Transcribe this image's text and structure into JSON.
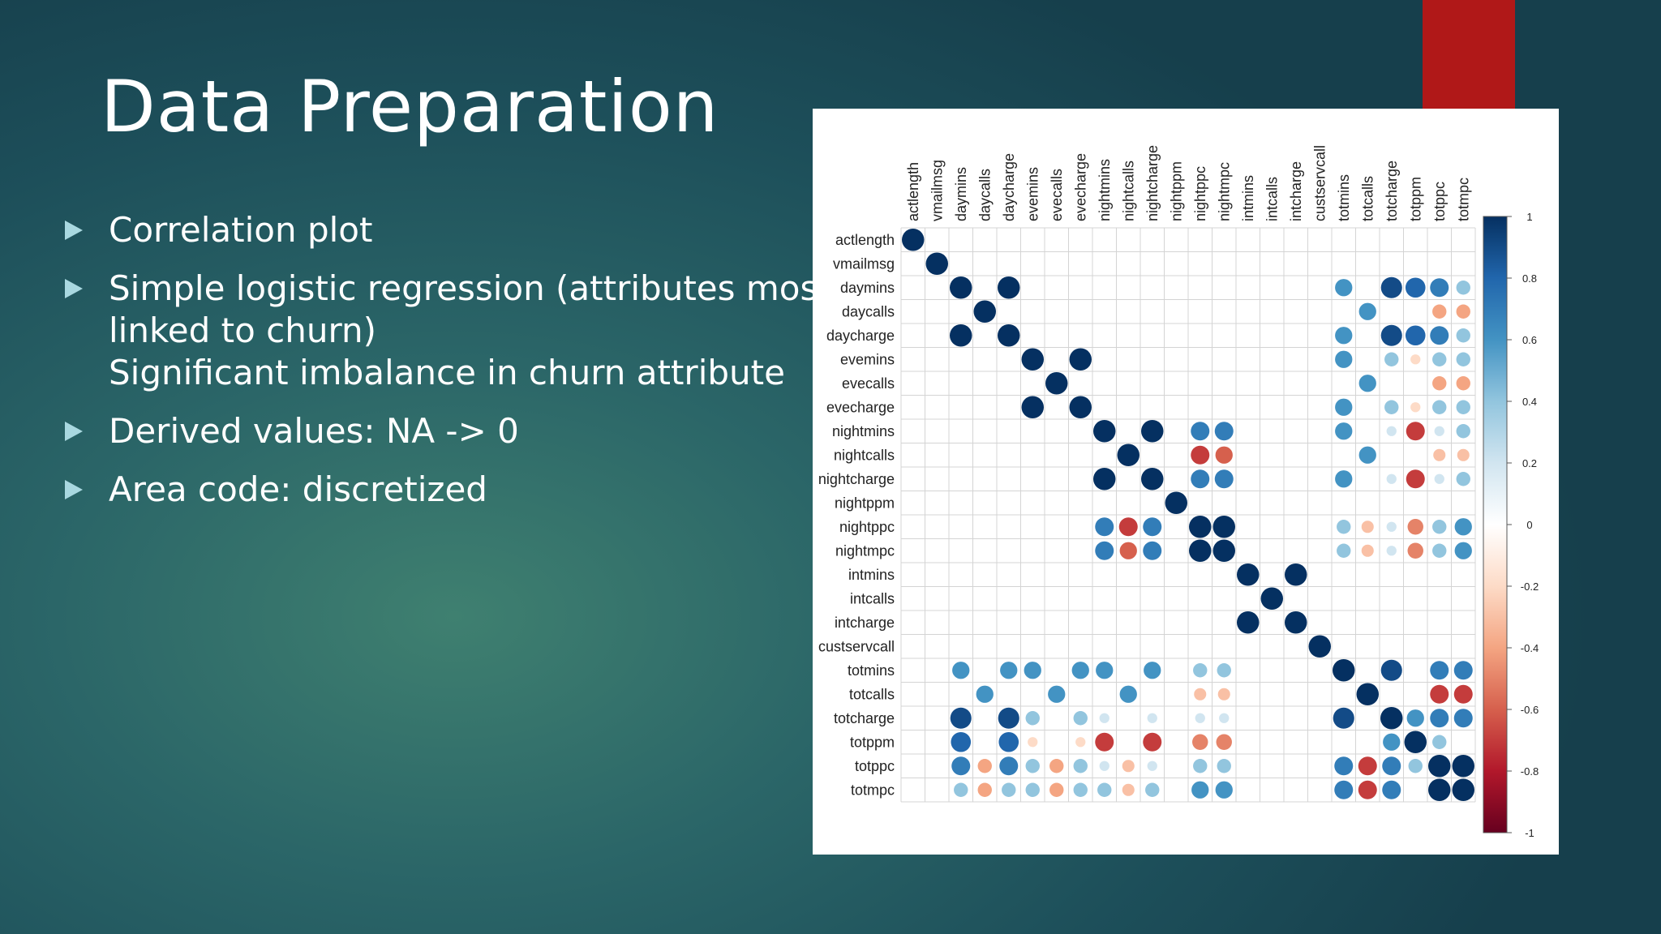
{
  "slide": {
    "title": "Data Preparation",
    "bullets": [
      {
        "lines": [
          "Correlation plot"
        ]
      },
      {
        "lines": [
          "Simple logistic regression (attributes most",
          "linked to churn)",
          "Significant imbalance in churn attribute"
        ]
      },
      {
        "lines": [
          "Derived values: NA -> 0"
        ]
      },
      {
        "lines": [
          "Area code: discretized"
        ]
      }
    ]
  },
  "colors": {
    "accent": "#b01818",
    "positive_strong": "#053061",
    "negative_strong": "#67001f",
    "neutral": "#ffffff"
  },
  "chart_data": {
    "type": "heatmap",
    "variables": [
      "actlength",
      "vmailmsg",
      "daymins",
      "daycalls",
      "daycharge",
      "evemins",
      "evecalls",
      "evecharge",
      "nightmins",
      "nightcalls",
      "nightcharge",
      "nightppm",
      "nightppc",
      "nightmpc",
      "intmins",
      "intcalls",
      "intcharge",
      "custservcall",
      "totmins",
      "totcalls",
      "totcharge",
      "totppm",
      "totppc",
      "totmpc"
    ],
    "legend_ticks": [
      "1",
      "0.8",
      "0.6",
      "0.4",
      "0.2",
      "0",
      "-0.2",
      "-0.4",
      "-0.6",
      "-0.8",
      "-1"
    ],
    "range": [
      -1,
      1
    ],
    "matrix": [
      [
        1,
        0,
        0,
        0,
        0,
        0,
        0,
        0,
        0,
        0,
        0,
        0,
        0,
        0,
        0,
        0,
        0,
        0,
        0,
        0,
        0,
        0,
        0,
        0
      ],
      [
        0,
        1,
        0,
        0,
        0,
        0,
        0,
        0,
        0,
        0,
        0,
        0,
        0,
        0,
        0,
        0,
        0,
        0,
        0,
        0,
        0,
        0,
        0,
        0
      ],
      [
        0,
        0,
        1,
        0,
        1,
        0,
        0,
        0,
        0,
        0,
        0,
        0,
        0,
        0,
        0,
        0,
        0,
        0,
        0.6,
        0,
        0.9,
        0.8,
        0.7,
        0.4
      ],
      [
        0,
        0,
        0,
        1,
        0,
        0,
        0,
        0,
        0,
        0,
        0,
        0,
        0,
        0,
        0,
        0,
        0,
        0,
        0,
        0.6,
        0,
        0,
        -0.4,
        -0.4
      ],
      [
        0,
        0,
        1,
        0,
        1,
        0,
        0,
        0,
        0,
        0,
        0,
        0,
        0,
        0,
        0,
        0,
        0,
        0,
        0.6,
        0,
        0.9,
        0.8,
        0.7,
        0.4
      ],
      [
        0,
        0,
        0,
        0,
        0,
        1,
        0,
        1,
        0,
        0,
        0,
        0,
        0,
        0,
        0,
        0,
        0,
        0,
        0.6,
        0,
        0.4,
        -0.2,
        0.4,
        0.4
      ],
      [
        0,
        0,
        0,
        0,
        0,
        0,
        1,
        0,
        0,
        0,
        0,
        0,
        0,
        0,
        0,
        0,
        0,
        0,
        0,
        0.6,
        0,
        0,
        -0.4,
        -0.4
      ],
      [
        0,
        0,
        0,
        0,
        0,
        1,
        0,
        1,
        0,
        0,
        0,
        0,
        0,
        0,
        0,
        0,
        0,
        0,
        0.6,
        0,
        0.4,
        -0.2,
        0.4,
        0.4
      ],
      [
        0,
        0,
        0,
        0,
        0,
        0,
        0,
        0,
        1,
        0,
        1,
        0,
        0.7,
        0.7,
        0,
        0,
        0,
        0,
        0.6,
        0,
        0.2,
        -0.7,
        0.2,
        0.4
      ],
      [
        0,
        0,
        0,
        0,
        0,
        0,
        0,
        0,
        0,
        1,
        0,
        0,
        -0.7,
        -0.6,
        0,
        0,
        0,
        0,
        0,
        0.6,
        0,
        0,
        -0.3,
        -0.3
      ],
      [
        0,
        0,
        0,
        0,
        0,
        0,
        0,
        0,
        1,
        0,
        1,
        0,
        0.7,
        0.7,
        0,
        0,
        0,
        0,
        0.6,
        0,
        0.2,
        -0.7,
        0.2,
        0.4
      ],
      [
        0,
        0,
        0,
        0,
        0,
        0,
        0,
        0,
        0,
        0,
        0,
        1,
        0,
        0,
        0,
        0,
        0,
        0,
        0,
        0,
        0,
        0,
        0,
        0
      ],
      [
        0,
        0,
        0,
        0,
        0,
        0,
        0,
        0,
        0.7,
        -0.7,
        0.7,
        0,
        1,
        1,
        0,
        0,
        0,
        0,
        0.4,
        -0.3,
        0.2,
        -0.5,
        0.4,
        0.6
      ],
      [
        0,
        0,
        0,
        0,
        0,
        0,
        0,
        0,
        0.7,
        -0.6,
        0.7,
        0,
        1,
        1,
        0,
        0,
        0,
        0,
        0.4,
        -0.3,
        0.2,
        -0.5,
        0.4,
        0.6
      ],
      [
        0,
        0,
        0,
        0,
        0,
        0,
        0,
        0,
        0,
        0,
        0,
        0,
        0,
        0,
        1,
        0,
        1,
        0,
        0,
        0,
        0,
        0,
        0,
        0
      ],
      [
        0,
        0,
        0,
        0,
        0,
        0,
        0,
        0,
        0,
        0,
        0,
        0,
        0,
        0,
        0,
        1,
        0,
        0,
        0,
        0,
        0,
        0,
        0,
        0
      ],
      [
        0,
        0,
        0,
        0,
        0,
        0,
        0,
        0,
        0,
        0,
        0,
        0,
        0,
        0,
        1,
        0,
        1,
        0,
        0,
        0,
        0,
        0,
        0,
        0
      ],
      [
        0,
        0,
        0,
        0,
        0,
        0,
        0,
        0,
        0,
        0,
        0,
        0,
        0,
        0,
        0,
        0,
        0,
        1,
        0,
        0,
        0,
        0,
        0,
        0
      ],
      [
        0,
        0,
        0.6,
        0,
        0.6,
        0.6,
        0,
        0.6,
        0.6,
        0,
        0.6,
        0,
        0.4,
        0.4,
        0,
        0,
        0,
        0,
        1,
        0,
        0.9,
        0,
        0.7,
        0.7
      ],
      [
        0,
        0,
        0,
        0.6,
        0,
        0,
        0.6,
        0,
        0,
        0.6,
        0,
        0,
        -0.3,
        -0.3,
        0,
        0,
        0,
        0,
        0,
        1,
        0,
        0,
        -0.7,
        -0.7
      ],
      [
        0,
        0,
        0.9,
        0,
        0.9,
        0.4,
        0,
        0.4,
        0.2,
        0,
        0.2,
        0,
        0.2,
        0.2,
        0,
        0,
        0,
        0,
        0.9,
        0,
        1,
        0.6,
        0.7,
        0.7
      ],
      [
        0,
        0,
        0.8,
        0,
        0.8,
        -0.2,
        0,
        -0.2,
        -0.7,
        0,
        -0.7,
        0,
        -0.5,
        -0.5,
        0,
        0,
        0,
        0,
        0,
        0,
        0.6,
        1,
        0.4,
        0
      ],
      [
        0,
        0,
        0.7,
        -0.4,
        0.7,
        0.4,
        -0.4,
        0.4,
        0.2,
        -0.3,
        0.2,
        0,
        0.4,
        0.4,
        0,
        0,
        0,
        0,
        0.7,
        -0.7,
        0.7,
        0.4,
        1,
        1
      ],
      [
        0,
        0,
        0.4,
        -0.4,
        0.4,
        0.4,
        -0.4,
        0.4,
        0.4,
        -0.3,
        0.4,
        0,
        0.6,
        0.6,
        0,
        0,
        0,
        0,
        0.7,
        -0.7,
        0.7,
        0,
        1,
        1
      ]
    ]
  }
}
